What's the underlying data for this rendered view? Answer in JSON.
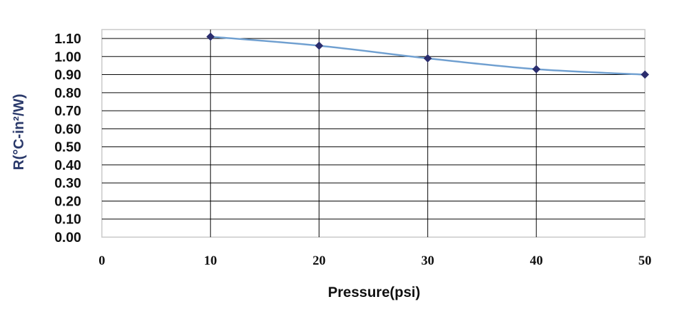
{
  "chart_data": {
    "type": "line",
    "title": "",
    "xlabel": "Pressure(psi)",
    "ylabel": "R(°C-in²/W)",
    "x": [
      10,
      20,
      30,
      40,
      50
    ],
    "series": [
      {
        "values": [
          1.11,
          1.06,
          0.99,
          0.93,
          0.9
        ]
      }
    ],
    "xlim": [
      0,
      50
    ],
    "ylim": [
      0.0,
      1.1
    ],
    "xticks": [
      "0",
      "10",
      "20",
      "30",
      "40",
      "50"
    ],
    "yticks": [
      "0.00",
      "0.10",
      "0.20",
      "0.30",
      "0.40",
      "0.50",
      "0.60",
      "0.70",
      "0.80",
      "0.90",
      "1.00",
      "1.10"
    ],
    "grid": true,
    "legend": "none",
    "colors": {
      "line": "#6f9fd0",
      "marker": "#2b2d6e",
      "ylabel": "#2b3a6b",
      "grid": "#000000",
      "frame": "#c8c8c8"
    }
  }
}
